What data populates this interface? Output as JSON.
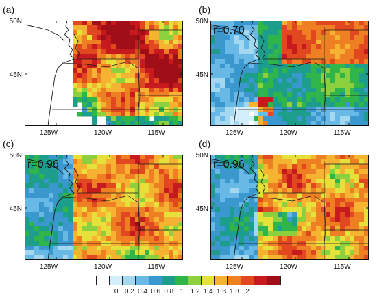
{
  "colorbar": {
    "ticks": [
      "0",
      "0.2",
      "0.4",
      "0.6",
      "0.8",
      "1",
      "1.2",
      "1.4",
      "1.6",
      "1.8",
      "2"
    ],
    "colors": [
      "#ffffff",
      "#d3eefb",
      "#a4d7f0",
      "#68b9e5",
      "#3a98cf",
      "#1d9e8c",
      "#2fb54a",
      "#8ccf3f",
      "#e6e13a",
      "#f5b331",
      "#ef7f23",
      "#e2481f",
      "#c71a1f",
      "#a00f18"
    ]
  },
  "panels": [
    {
      "label": "(a)",
      "r": ""
    },
    {
      "label": "(b)",
      "r": "r=0.70"
    },
    {
      "label": "(c)",
      "r": "r=0.96"
    },
    {
      "label": "(d)",
      "r": "r=0.96"
    }
  ],
  "axes": {
    "lat_labels": [
      "50N",
      "45N"
    ],
    "lon_labels": [
      "125W",
      "120W",
      "115W"
    ]
  }
}
